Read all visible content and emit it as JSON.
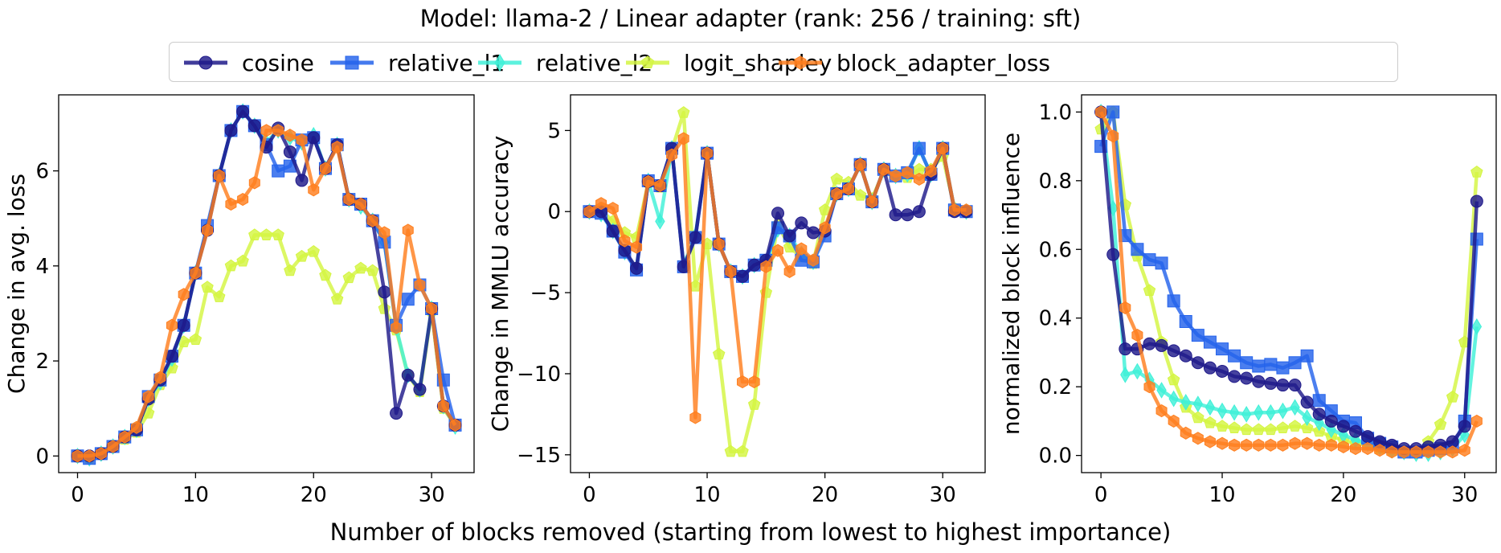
{
  "figure": {
    "title": "Model: llama-2 / Linear adapter (rank: 256 / training: sft)",
    "shared_xlabel": "Number of blocks removed (starting from lowest to highest importance)"
  },
  "colors": {
    "cosine": "#1f1a8a",
    "relative_l1": "#2563eb",
    "relative_l2": "#40f0d8",
    "logit_shapley": "#d4f542",
    "block_adapter_loss": "#ff7f1e"
  },
  "legend": [
    {
      "name": "cosine",
      "marker": "circle"
    },
    {
      "name": "relative_l1",
      "marker": "square"
    },
    {
      "name": "relative_l2",
      "marker": "diamond"
    },
    {
      "name": "logit_shapley",
      "marker": "pentagon"
    },
    {
      "name": "block_adapter_loss",
      "marker": "hexagon"
    }
  ],
  "chart_data": [
    {
      "type": "line",
      "ylabel": "Change in avg. loss",
      "xlim": [
        -1.6,
        33.6
      ],
      "ylim": [
        -0.35,
        7.6
      ],
      "xticks": [
        0,
        10,
        20,
        30
      ],
      "yticks": [
        0,
        2,
        4,
        6
      ],
      "x": [
        0,
        1,
        2,
        3,
        4,
        5,
        6,
        7,
        8,
        9,
        10,
        11,
        12,
        13,
        14,
        15,
        16,
        17,
        18,
        19,
        20,
        21,
        22,
        23,
        24,
        25,
        26,
        27,
        28,
        29,
        30,
        31,
        32
      ],
      "series": [
        {
          "name": "cosine",
          "values": [
            0,
            0,
            0.05,
            0.2,
            0.4,
            0.55,
            1.2,
            1.6,
            2.1,
            2.75,
            3.85,
            4.75,
            5.9,
            6.85,
            7.25,
            6.95,
            6.5,
            6.9,
            6.4,
            5.8,
            6.7,
            6.05,
            6.55,
            5.4,
            5.3,
            4.95,
            3.45,
            0.9,
            1.7,
            1.4,
            3.1,
            1.05,
            0.65
          ]
        },
        {
          "name": "relative_l1",
          "values": [
            0,
            -0.05,
            0.05,
            0.2,
            0.4,
            0.55,
            1.25,
            1.6,
            2.1,
            2.75,
            3.85,
            4.85,
            5.9,
            6.85,
            7.25,
            6.95,
            6.55,
            6.0,
            6.1,
            6.65,
            6.7,
            6.05,
            6.55,
            5.4,
            5.3,
            4.95,
            4.5,
            2.75,
            3.3,
            3.6,
            3.1,
            1.6,
            0.65
          ]
        },
        {
          "name": "relative_l2",
          "values": [
            0,
            -0.05,
            0.05,
            0.2,
            0.4,
            0.55,
            1.2,
            1.55,
            2.05,
            2.75,
            3.85,
            4.8,
            5.9,
            6.85,
            7.25,
            6.95,
            6.6,
            6.85,
            6.7,
            6.6,
            6.75,
            6.05,
            6.55,
            5.4,
            5.25,
            4.95,
            4.5,
            2.7,
            1.7,
            1.4,
            3.1,
            1.05,
            0.62
          ]
        },
        {
          "name": "logit_shapley",
          "values": [
            0,
            -0.05,
            0.05,
            0.2,
            0.35,
            0.5,
            0.9,
            1.5,
            1.85,
            2.4,
            2.45,
            3.55,
            3.35,
            4.0,
            4.1,
            4.65,
            4.65,
            4.65,
            3.9,
            4.2,
            4.3,
            3.8,
            3.3,
            3.75,
            3.95,
            3.9,
            3.1,
            2.65,
            1.7,
            1.35,
            3.05,
            1.0,
            0.65
          ]
        },
        {
          "name": "block_adapter_loss",
          "values": [
            0,
            0,
            0.05,
            0.2,
            0.4,
            0.6,
            1.25,
            1.65,
            2.75,
            3.4,
            3.85,
            4.75,
            5.9,
            5.3,
            5.4,
            5.75,
            6.85,
            6.85,
            6.75,
            6.65,
            5.6,
            6.05,
            6.5,
            5.4,
            5.3,
            4.95,
            4.7,
            2.7,
            4.75,
            3.6,
            3.1,
            1.05,
            0.65
          ]
        }
      ]
    },
    {
      "type": "line",
      "ylabel": "Change in MMLU accuracy",
      "xlim": [
        -1.6,
        33.6
      ],
      "ylim": [
        -16.1,
        7.2
      ],
      "xticks": [
        0,
        10,
        20,
        30
      ],
      "yticks": [
        5,
        0,
        -5,
        -10,
        -15
      ],
      "x": [
        0,
        1,
        2,
        3,
        4,
        5,
        6,
        7,
        8,
        9,
        10,
        11,
        12,
        13,
        14,
        15,
        16,
        17,
        18,
        19,
        20,
        21,
        22,
        23,
        24,
        25,
        26,
        27,
        28,
        29,
        30,
        31,
        32
      ],
      "series": [
        {
          "name": "cosine",
          "values": [
            0,
            0,
            -1.2,
            -2.4,
            -3.5,
            1.85,
            1.6,
            3.9,
            -3.4,
            -1.6,
            3.6,
            -2.0,
            -3.7,
            -4.0,
            -3.3,
            -3.0,
            -0.1,
            -1.5,
            -0.7,
            -1.3,
            -1.2,
            1.1,
            1.4,
            2.9,
            0.6,
            2.6,
            -0.2,
            -0.2,
            0,
            2.3,
            3.9,
            0,
            0
          ]
        },
        {
          "name": "relative_l1",
          "values": [
            0,
            -0.1,
            -1.2,
            -2.5,
            -3.6,
            1.9,
            1.6,
            3.9,
            -3.4,
            -1.6,
            3.6,
            -2.0,
            -3.7,
            -4.0,
            -3.3,
            -3.0,
            -1.0,
            -1.5,
            -3.0,
            -3.1,
            -1.5,
            1.1,
            1.4,
            2.9,
            0.6,
            2.6,
            2.2,
            2.4,
            3.9,
            2.3,
            3.9,
            0.1,
            0
          ]
        },
        {
          "name": "relative_l2",
          "values": [
            0,
            -0.15,
            -1.2,
            -2.5,
            -3.5,
            1.9,
            -0.6,
            3.9,
            -3.3,
            -1.5,
            3.6,
            -2.0,
            -3.7,
            -4.0,
            -3.3,
            -3.1,
            -1.1,
            -1.5,
            -2.6,
            -3.1,
            -1.2,
            1.1,
            1.4,
            2.9,
            0.6,
            2.6,
            2.2,
            2.3,
            3.9,
            2.3,
            3.9,
            0.1,
            0
          ]
        },
        {
          "name": "logit_shapley",
          "values": [
            0,
            0.1,
            -0.6,
            -1.3,
            -1.6,
            1.8,
            1.5,
            3.8,
            6.1,
            -4.6,
            -2.0,
            -8.8,
            -14.8,
            -14.8,
            -11.9,
            -5.0,
            -0.8,
            -2.2,
            -2.8,
            -3.2,
            0.1,
            2.0,
            1.8,
            1.0,
            0.8,
            2.5,
            2.2,
            2.1,
            2.6,
            2.6,
            3.4,
            0.2,
            0
          ]
        },
        {
          "name": "block_adapter_loss",
          "values": [
            0,
            0.5,
            0.2,
            -1.8,
            -2.2,
            1.85,
            1.6,
            3.5,
            4.5,
            -12.7,
            3.6,
            -2.0,
            -3.7,
            -10.5,
            -10.5,
            -3.4,
            -2.4,
            -3.7,
            -2.3,
            -3.0,
            -1.0,
            1.1,
            1.4,
            2.9,
            0.6,
            2.6,
            2.2,
            2.4,
            2.0,
            2.5,
            3.9,
            0.1,
            0.1
          ]
        }
      ]
    },
    {
      "type": "line",
      "ylabel": "normalized block influence",
      "xlim": [
        -1.6,
        32.6
      ],
      "ylim": [
        -0.05,
        1.05
      ],
      "xticks": [
        0,
        10,
        20,
        30
      ],
      "yticks": [
        0.0,
        0.2,
        0.4,
        0.6,
        0.8,
        1.0
      ],
      "x": [
        0,
        1,
        2,
        3,
        4,
        5,
        6,
        7,
        8,
        9,
        10,
        11,
        12,
        13,
        14,
        15,
        16,
        17,
        18,
        19,
        20,
        21,
        22,
        23,
        24,
        25,
        26,
        27,
        28,
        29,
        30,
        31
      ],
      "series": [
        {
          "name": "cosine",
          "values": [
            1.0,
            0.585,
            0.31,
            0.31,
            0.325,
            0.32,
            0.305,
            0.29,
            0.27,
            0.255,
            0.245,
            0.23,
            0.225,
            0.215,
            0.21,
            0.205,
            0.205,
            0.155,
            0.12,
            0.1,
            0.085,
            0.07,
            0.055,
            0.04,
            0.03,
            0.02,
            0.02,
            0.025,
            0.03,
            0.04,
            0.085,
            0.74
          ]
        },
        {
          "name": "relative_l1",
          "values": [
            0.9,
            1.0,
            0.64,
            0.6,
            0.57,
            0.56,
            0.45,
            0.39,
            0.35,
            0.33,
            0.31,
            0.29,
            0.27,
            0.26,
            0.265,
            0.255,
            0.27,
            0.29,
            0.16,
            0.13,
            0.1,
            0.095,
            0.05,
            0.035,
            0.025,
            0.01,
            0.01,
            0.015,
            0.02,
            0.025,
            0.1,
            0.63
          ]
        },
        {
          "name": "relative_l2",
          "values": [
            1.0,
            0.72,
            0.235,
            0.245,
            0.22,
            0.19,
            0.165,
            0.155,
            0.15,
            0.14,
            0.13,
            0.125,
            0.12,
            0.125,
            0.125,
            0.13,
            0.14,
            0.11,
            0.095,
            0.075,
            0.06,
            0.045,
            0.035,
            0.025,
            0.015,
            0.01,
            0.005,
            0.005,
            0.01,
            0.02,
            0.06,
            0.375
          ]
        },
        {
          "name": "logit_shapley",
          "values": [
            0.95,
            1.0,
            0.73,
            0.58,
            0.48,
            0.33,
            0.22,
            0.14,
            0.11,
            0.095,
            0.085,
            0.08,
            0.075,
            0.075,
            0.075,
            0.08,
            0.085,
            0.08,
            0.07,
            0.055,
            0.045,
            0.035,
            0.03,
            0.02,
            0.015,
            0.01,
            0.01,
            0.04,
            0.09,
            0.17,
            0.33,
            0.825
          ]
        },
        {
          "name": "block_adapter_loss",
          "values": [
            1.0,
            0.93,
            0.43,
            0.35,
            0.2,
            0.13,
            0.1,
            0.065,
            0.05,
            0.04,
            0.035,
            0.03,
            0.03,
            0.03,
            0.03,
            0.03,
            0.035,
            0.035,
            0.03,
            0.03,
            0.025,
            0.02,
            0.02,
            0.015,
            0.01,
            0.01,
            0.01,
            0.01,
            0.01,
            0.01,
            0.015,
            0.1
          ]
        }
      ]
    }
  ]
}
